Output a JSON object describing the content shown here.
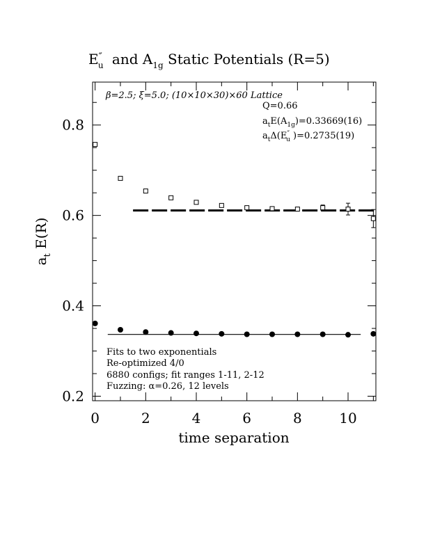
{
  "chart_data": {
    "type": "scatter",
    "title_parts": {
      "e_main": "E",
      "e_prime": "″",
      "e_sub": "u",
      "and": " and A",
      "a_sub": "1g",
      "tail": " Static Potentials (R=5)"
    },
    "xlabel": "time separation",
    "ylabel_main": "a",
    "ylabel_sub": "t",
    "ylabel_tail": " E(R)",
    "xlim": [
      -0.1,
      11.1
    ],
    "ylim": [
      0.19,
      0.895
    ],
    "xticks": [
      0,
      2,
      4,
      6,
      8,
      10
    ],
    "yticks": [
      0.2,
      0.4,
      0.6,
      0.8
    ],
    "xtick_labels": [
      "0",
      "2",
      "4",
      "6",
      "8",
      "10"
    ],
    "ytick_labels": [
      "0.2",
      "0.4",
      "0.6",
      "0.8"
    ],
    "lattice_info": "β=2.5; ξ=5.0; (10×10×30)×60 Lattice",
    "fit_q": "Q=0.66",
    "fit_a1g": {
      "pre": "a",
      "pre_sub": "t",
      "mid": "E(A",
      "sub": "1g",
      "post": ")=0.33669(16)"
    },
    "fit_eu": {
      "pre": "a",
      "pre_sub": "t",
      "mid": "Δ(E",
      "prime": "″",
      "sub": "u",
      "post": " )=0.2735(19)"
    },
    "notes": [
      "Fits to two exponentials",
      "Re-optimized 4/0",
      "6880 configs; fit ranges 1-11, 2-12",
      "Fuzzing: α=0.26, 12 levels"
    ],
    "series": [
      {
        "marker": "open-square",
        "points": [
          {
            "x": 0,
            "y": 0.757,
            "err": 0.004
          },
          {
            "x": 1,
            "y": 0.682,
            "err": 0.003
          },
          {
            "x": 2,
            "y": 0.654,
            "err": 0.003
          },
          {
            "x": 3,
            "y": 0.639,
            "err": 0.003
          },
          {
            "x": 4,
            "y": 0.629,
            "err": 0.003
          },
          {
            "x": 5,
            "y": 0.622,
            "err": 0.003
          },
          {
            "x": 6,
            "y": 0.617,
            "err": 0.004
          },
          {
            "x": 7,
            "y": 0.615,
            "err": 0.003
          },
          {
            "x": 8,
            "y": 0.614,
            "err": 0.004
          },
          {
            "x": 9,
            "y": 0.617,
            "err": 0.006
          },
          {
            "x": 10,
            "y": 0.614,
            "err": 0.013
          },
          {
            "x": 11,
            "y": 0.593,
            "err": 0.02
          }
        ],
        "fit_line": {
          "x": [
            1.5,
            11.1
          ],
          "y": 0.611,
          "style": "dashed"
        }
      },
      {
        "marker": "filled-circle",
        "points": [
          {
            "x": 0,
            "y": 0.361
          },
          {
            "x": 1,
            "y": 0.347
          },
          {
            "x": 2,
            "y": 0.342
          },
          {
            "x": 3,
            "y": 0.34
          },
          {
            "x": 4,
            "y": 0.339
          },
          {
            "x": 5,
            "y": 0.338
          },
          {
            "x": 6,
            "y": 0.337
          },
          {
            "x": 7,
            "y": 0.337
          },
          {
            "x": 8,
            "y": 0.337
          },
          {
            "x": 9,
            "y": 0.337
          },
          {
            "x": 10,
            "y": 0.336
          },
          {
            "x": 11,
            "y": 0.338
          }
        ],
        "fit_line": {
          "x": [
            0.5,
            10.5
          ],
          "y": 0.3367,
          "style": "solid"
        }
      }
    ]
  }
}
